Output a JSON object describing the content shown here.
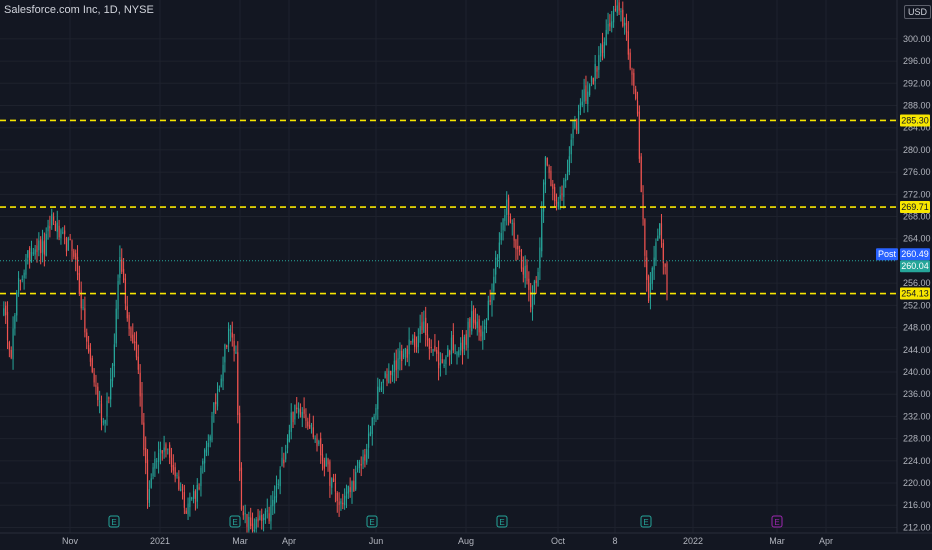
{
  "header": {
    "title": "Salesforce.com Inc, 1D, NYSE",
    "currency": "USD"
  },
  "colors": {
    "background": "#131722",
    "up": "#26a69a",
    "down": "#ef5350",
    "level_line": "#f7e600",
    "level_tag_bg": "#f7e600",
    "post_tag_bg": "#2962ff",
    "last_tag_bg": "#26a69a",
    "earnings": "#26a69a",
    "dividend": "#9c27b0"
  },
  "chart_data": {
    "type": "candlestick",
    "title": "Salesforce.com Inc, 1D, NYSE",
    "xlabel": "",
    "ylabel": "",
    "ylim": [
      211,
      307
    ],
    "y_ticks": [
      "300.00",
      "296.00",
      "292.00",
      "288.00",
      "284.00",
      "280.00",
      "276.00",
      "272.00",
      "268.00",
      "264.00",
      "256.00",
      "252.00",
      "248.00",
      "244.00",
      "240.00",
      "236.00",
      "232.00",
      "228.00",
      "224.00",
      "220.00",
      "216.00",
      "212.00"
    ],
    "x_ticks": [
      "Nov",
      "2021",
      "Mar",
      "Apr",
      "Jun",
      "Aug",
      "Oct",
      "8",
      "2022",
      "Mar",
      "Apr"
    ],
    "horizontal_levels": [
      {
        "label": "285.30",
        "value": 285.3
      },
      {
        "label": "269.71",
        "value": 269.71
      },
      {
        "label": "254.13",
        "value": 254.13
      }
    ],
    "price_tags": {
      "post_label": "Post",
      "post_value": "260.49",
      "last_value": "260.04"
    },
    "earnings_markers": [
      "E",
      "E",
      "E",
      "E",
      "E"
    ],
    "dividend_marker": "E",
    "price_path": [
      {
        "t": 0,
        "p": 252
      },
      {
        "t": 5,
        "p": 244
      },
      {
        "t": 9,
        "p": 256
      },
      {
        "t": 17,
        "p": 263
      },
      {
        "t": 23,
        "p": 262
      },
      {
        "t": 27,
        "p": 268
      },
      {
        "t": 32,
        "p": 264
      },
      {
        "t": 39,
        "p": 262
      },
      {
        "t": 47,
        "p": 243
      },
      {
        "t": 55,
        "p": 231
      },
      {
        "t": 60,
        "p": 240
      },
      {
        "t": 64,
        "p": 262
      },
      {
        "t": 69,
        "p": 248
      },
      {
        "t": 73,
        "p": 244
      },
      {
        "t": 79,
        "p": 218
      },
      {
        "t": 84,
        "p": 224
      },
      {
        "t": 88,
        "p": 227
      },
      {
        "t": 95,
        "p": 221
      },
      {
        "t": 100,
        "p": 216
      },
      {
        "t": 106,
        "p": 219
      },
      {
        "t": 111,
        "p": 226
      },
      {
        "t": 119,
        "p": 240
      },
      {
        "t": 123,
        "p": 248
      },
      {
        "t": 127,
        "p": 243
      },
      {
        "t": 130,
        "p": 214
      },
      {
        "t": 136,
        "p": 212
      },
      {
        "t": 145,
        "p": 214
      },
      {
        "t": 150,
        "p": 220
      },
      {
        "t": 157,
        "p": 232
      },
      {
        "t": 163,
        "p": 234
      },
      {
        "t": 170,
        "p": 228
      },
      {
        "t": 176,
        "p": 223
      },
      {
        "t": 183,
        "p": 216
      },
      {
        "t": 191,
        "p": 220
      },
      {
        "t": 198,
        "p": 226
      },
      {
        "t": 204,
        "p": 236
      },
      {
        "t": 210,
        "p": 240
      },
      {
        "t": 217,
        "p": 243
      },
      {
        "t": 223,
        "p": 245
      },
      {
        "t": 229,
        "p": 248
      },
      {
        "t": 234,
        "p": 244
      },
      {
        "t": 238,
        "p": 241
      },
      {
        "t": 244,
        "p": 245
      },
      {
        "t": 250,
        "p": 244
      },
      {
        "t": 255,
        "p": 250
      },
      {
        "t": 260,
        "p": 246
      },
      {
        "t": 265,
        "p": 254
      },
      {
        "t": 269,
        "p": 262
      },
      {
        "t": 274,
        "p": 270
      },
      {
        "t": 279,
        "p": 263
      },
      {
        "t": 284,
        "p": 258
      },
      {
        "t": 287,
        "p": 253
      },
      {
        "t": 291,
        "p": 259
      },
      {
        "t": 295,
        "p": 278
      },
      {
        "t": 300,
        "p": 272
      },
      {
        "t": 304,
        "p": 271
      },
      {
        "t": 309,
        "p": 281
      },
      {
        "t": 315,
        "p": 289
      },
      {
        "t": 321,
        "p": 293
      },
      {
        "t": 327,
        "p": 300
      },
      {
        "t": 333,
        "p": 305
      },
      {
        "t": 338,
        "p": 303
      },
      {
        "t": 343,
        "p": 291
      },
      {
        "t": 345,
        "p": 285
      },
      {
        "t": 348,
        "p": 267
      },
      {
        "t": 351,
        "p": 253
      },
      {
        "t": 354,
        "p": 261
      },
      {
        "t": 357,
        "p": 267
      },
      {
        "t": 359,
        "p": 261
      },
      {
        "t": 361,
        "p": 254
      }
    ],
    "total_sessions": 361
  }
}
